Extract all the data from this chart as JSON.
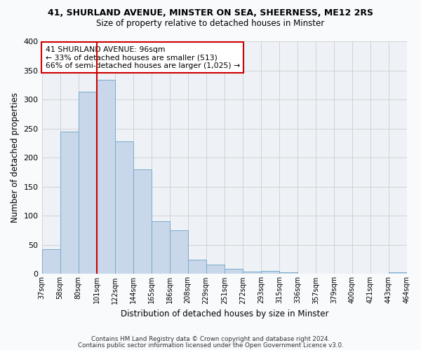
{
  "title": "41, SHURLAND AVENUE, MINSTER ON SEA, SHEERNESS, ME12 2RS",
  "subtitle": "Size of property relative to detached houses in Minster",
  "xlabel": "Distribution of detached houses by size in Minster",
  "ylabel": "Number of detached properties",
  "bar_color": "#c8d8ea",
  "bar_edge_color": "#7aaac8",
  "background_color": "#eef2f7",
  "grid_color": "#cccccc",
  "tick_labels": [
    "37sqm",
    "58sqm",
    "80sqm",
    "101sqm",
    "122sqm",
    "144sqm",
    "165sqm",
    "186sqm",
    "208sqm",
    "229sqm",
    "251sqm",
    "272sqm",
    "293sqm",
    "315sqm",
    "336sqm",
    "357sqm",
    "379sqm",
    "400sqm",
    "421sqm",
    "443sqm",
    "464sqm"
  ],
  "bar_heights": [
    42,
    245,
    313,
    334,
    228,
    180,
    91,
    75,
    25,
    16,
    9,
    4,
    5,
    3,
    0,
    0,
    0,
    0,
    0,
    3
  ],
  "vline_x": 3,
  "vline_color": "#cc0000",
  "annotation_title": "41 SHURLAND AVENUE: 96sqm",
  "annotation_line2": "← 33% of detached houses are smaller (513)",
  "annotation_line3": "66% of semi-detached houses are larger (1,025) →",
  "annotation_box_color": "#cc0000",
  "ylim": [
    0,
    400
  ],
  "yticks": [
    0,
    50,
    100,
    150,
    200,
    250,
    300,
    350,
    400
  ],
  "footnote1": "Contains HM Land Registry data © Crown copyright and database right 2024.",
  "footnote2": "Contains public sector information licensed under the Open Government Licence v3.0."
}
